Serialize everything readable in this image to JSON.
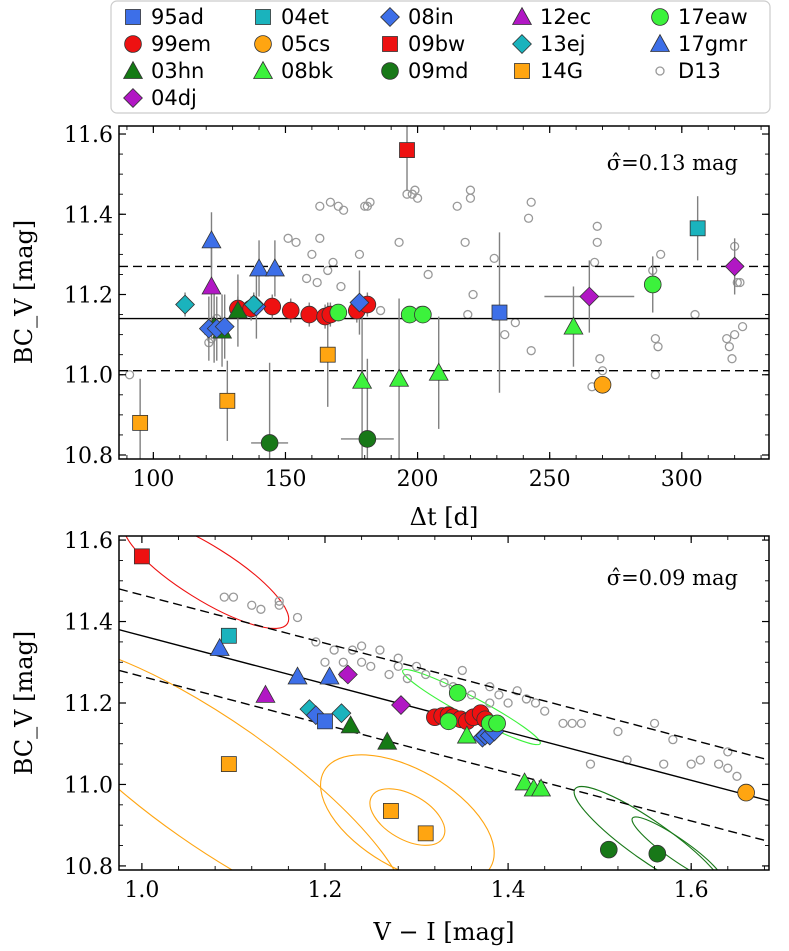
{
  "legend": {
    "items": [
      {
        "label": "95ad",
        "marker": "square",
        "color": "#3d6fe8"
      },
      {
        "label": "99em",
        "marker": "circle",
        "color": "#ee1111"
      },
      {
        "label": "03hn",
        "marker": "triangle",
        "color": "#147a14"
      },
      {
        "label": "04dj",
        "marker": "diamond",
        "color": "#b117c4"
      },
      {
        "label": "04et",
        "marker": "square",
        "color": "#1ab3bd"
      },
      {
        "label": "05cs",
        "marker": "circle",
        "color": "#ffa511"
      },
      {
        "label": "08bk",
        "marker": "triangle",
        "color": "#3cf23c"
      },
      {
        "label": "08in",
        "marker": "diamond",
        "color": "#3d6fe8"
      },
      {
        "label": "09bw",
        "marker": "square",
        "color": "#ee1111"
      },
      {
        "label": "09md",
        "marker": "circle",
        "color": "#187818"
      },
      {
        "label": "12ec",
        "marker": "triangle",
        "color": "#b117c4"
      },
      {
        "label": "13ej",
        "marker": "diamond",
        "color": "#1ab3bd"
      },
      {
        "label": "14G",
        "marker": "square",
        "color": "#ffa511"
      },
      {
        "label": "17eaw",
        "marker": "circle",
        "color": "#3cf23c"
      },
      {
        "label": "17gmr",
        "marker": "triangle",
        "color": "#3d6fe8"
      },
      {
        "label": "D13",
        "marker": "open-circle",
        "color": "#999999"
      }
    ]
  },
  "chart_data": [
    {
      "type": "scatter",
      "title": "",
      "annotation": "σ̂=0.13 mag",
      "xlabel": "Δt [d]",
      "ylabel": "BC_V [mag]",
      "xlim": [
        87,
        333
      ],
      "ylim": [
        10.79,
        11.62
      ],
      "xticks": [
        100,
        150,
        200,
        250,
        300
      ],
      "xtick_labels": [
        "100",
        "150",
        "200",
        "250",
        "300"
      ],
      "yticks": [
        10.8,
        11.0,
        11.2,
        11.4,
        11.6
      ],
      "ytick_labels": [
        "10.8",
        "11.0",
        "11.2",
        "11.4",
        "11.6"
      ],
      "hlines": [
        {
          "y": 11.14,
          "style": "solid"
        },
        {
          "y": 11.27,
          "style": "dashed"
        },
        {
          "y": 11.01,
          "style": "dashed"
        }
      ],
      "background_points": {
        "name": "D13",
        "x": [
          91,
          121,
          122,
          123,
          124,
          126,
          151,
          154,
          158,
          160,
          162,
          163,
          163,
          166,
          167,
          168,
          170,
          171,
          172,
          176,
          178,
          178,
          180,
          181,
          182,
          186,
          193,
          196,
          198,
          199,
          200,
          201,
          204,
          215,
          218,
          219,
          220,
          220,
          221,
          229,
          233,
          237,
          242,
          243,
          243,
          266,
          267,
          268,
          268,
          269,
          270,
          289,
          290,
          290,
          291,
          292,
          305,
          317,
          318,
          319,
          320,
          320,
          321,
          321,
          322,
          323
        ],
        "y": [
          11.0,
          11.08,
          11.09,
          11.13,
          11.14,
          11.12,
          11.34,
          11.33,
          11.24,
          11.3,
          11.23,
          11.34,
          11.42,
          11.26,
          11.43,
          11.28,
          11.42,
          11.22,
          11.41,
          11.15,
          11.16,
          11.3,
          11.42,
          11.42,
          11.43,
          11.16,
          11.33,
          11.45,
          11.45,
          11.46,
          11.44,
          11.16,
          11.25,
          11.42,
          11.33,
          11.15,
          11.46,
          11.44,
          11.2,
          11.29,
          11.1,
          11.13,
          11.39,
          11.43,
          11.06,
          10.97,
          11.28,
          11.37,
          11.33,
          11.04,
          11.01,
          11.26,
          11.09,
          11.0,
          11.07,
          11.3,
          11.15,
          11.09,
          11.07,
          11.04,
          11.1,
          11.32,
          11.27,
          11.23,
          11.23,
          11.12
        ]
      },
      "series": [
        {
          "name": "95ad",
          "x": [
            231
          ],
          "y": [
            11.155
          ],
          "xerr": [
            0
          ],
          "yerr": [
            0.2
          ]
        },
        {
          "name": "99em",
          "x": [
            132,
            137,
            145,
            152,
            159,
            165,
            167,
            177,
            181
          ],
          "y": [
            11.165,
            11.165,
            11.17,
            11.16,
            11.15,
            11.145,
            11.15,
            11.16,
            11.175
          ],
          "xerr": [
            0,
            0,
            0,
            0,
            0,
            0,
            0,
            0,
            0
          ],
          "yerr": [
            0.03,
            0.03,
            0.03,
            0.03,
            0.03,
            0.03,
            0.03,
            0.03,
            0.03
          ]
        },
        {
          "name": "03hn",
          "x": [
            123,
            126,
            132
          ],
          "y": [
            11.12,
            11.11,
            11.16
          ],
          "xerr": [
            0,
            0,
            0
          ],
          "yerr": [
            0.09,
            0.09,
            0.09
          ]
        },
        {
          "name": "04dj",
          "x": [
            265,
            320
          ],
          "y": [
            11.195,
            11.27
          ],
          "xerr": [
            17,
            0
          ],
          "yerr": [
            0.09,
            0.07
          ]
        },
        {
          "name": "04et",
          "x": [
            306
          ],
          "y": [
            11.365
          ],
          "xerr": [
            0
          ],
          "yerr": [
            0.08
          ]
        },
        {
          "name": "05cs",
          "x": [
            270
          ],
          "y": [
            10.975
          ],
          "xerr": [
            0
          ],
          "yerr": [
            0.02
          ]
        },
        {
          "name": "08bk",
          "x": [
            179,
            193,
            208,
            259
          ],
          "y": [
            10.985,
            10.99,
            11.005,
            11.12
          ],
          "xerr": [
            0,
            0,
            0,
            0
          ],
          "yerr": [
            0.2,
            0.2,
            0.14,
            0.1
          ]
        },
        {
          "name": "08in",
          "x": [
            121,
            124,
            127,
            139,
            178
          ],
          "y": [
            11.115,
            11.115,
            11.12,
            11.17,
            11.18
          ],
          "xerr": [
            0,
            0,
            0,
            0,
            0
          ],
          "yerr": [
            0.08,
            0.08,
            0.08,
            0.08,
            0.08
          ]
        },
        {
          "name": "09bw",
          "x": [
            196
          ],
          "y": [
            11.56
          ],
          "xerr": [
            0
          ],
          "yerr": [
            0.1
          ]
        },
        {
          "name": "09md",
          "x": [
            144,
            181
          ],
          "y": [
            10.83,
            10.84
          ],
          "xerr": [
            7,
            10
          ],
          "yerr": [
            0.2,
            0.2
          ]
        },
        {
          "name": "12ec",
          "x": [
            122
          ],
          "y": [
            11.22
          ],
          "xerr": [
            0
          ],
          "yerr": [
            0.13
          ]
        },
        {
          "name": "13ej",
          "x": [
            112,
            138
          ],
          "y": [
            11.175,
            11.175
          ],
          "xerr": [
            0,
            0
          ],
          "yerr": [
            0.03,
            0.03
          ]
        },
        {
          "name": "14G",
          "x": [
            95,
            128,
            166
          ],
          "y": [
            10.88,
            10.935,
            11.05
          ],
          "xerr": [
            0,
            0,
            0
          ],
          "yerr": [
            0.11,
            0.1,
            0.13
          ]
        },
        {
          "name": "17eaw",
          "x": [
            170,
            197,
            202,
            289
          ],
          "y": [
            11.155,
            11.15,
            11.15,
            11.225
          ],
          "xerr": [
            0,
            0,
            0,
            0
          ],
          "yerr": [
            0.01,
            0.01,
            0.01,
            0.07
          ]
        },
        {
          "name": "17gmr",
          "x": [
            122,
            140,
            146
          ],
          "y": [
            11.335,
            11.265,
            11.265
          ],
          "xerr": [
            0,
            0,
            0
          ],
          "yerr": [
            0.07,
            0.07,
            0.07
          ]
        }
      ]
    },
    {
      "type": "scatter",
      "title": "",
      "annotation": "σ̂=0.09 mag",
      "xlabel": "V − I [mag]",
      "ylabel": "BC_V [mag]",
      "xlim": [
        0.975,
        1.685
      ],
      "ylim": [
        10.79,
        11.61
      ],
      "xticks": [
        1.0,
        1.2,
        1.4,
        1.6
      ],
      "xtick_labels": [
        "1.0",
        "1.2",
        "1.4",
        "1.6"
      ],
      "yticks": [
        10.8,
        11.0,
        11.2,
        11.4,
        11.6
      ],
      "ytick_labels": [
        "10.8",
        "11.0",
        "11.2",
        "11.4",
        "11.6"
      ],
      "lines": [
        {
          "x": [
            0.975,
            1.685
          ],
          "y": [
            11.38,
            10.96
          ],
          "style": "solid"
        },
        {
          "x": [
            0.975,
            1.685
          ],
          "y": [
            11.48,
            11.06
          ],
          "style": "dashed"
        },
        {
          "x": [
            0.975,
            1.685
          ],
          "y": [
            11.28,
            10.86
          ],
          "style": "dashed"
        }
      ],
      "ellipses": [
        {
          "series": "09bw",
          "cx": 1.07,
          "cy": 11.52,
          "rx": 0.105,
          "ry": 0.03,
          "angle_deg": 32
        },
        {
          "series": "17eaw",
          "cx": 1.36,
          "cy": 11.19,
          "rx": 0.085,
          "ry": 0.011,
          "angle_deg": 28
        },
        {
          "series": "14G",
          "cx": 1.08,
          "cy": 11.0,
          "rx": 0.25,
          "ry": 0.07,
          "angle_deg": 35
        },
        {
          "series": "14G",
          "cx": 1.29,
          "cy": 10.915,
          "rx": 0.105,
          "ry": 0.055,
          "angle_deg": 30
        },
        {
          "series": "14G",
          "cx": 1.29,
          "cy": 10.92,
          "rx": 0.045,
          "ry": 0.025,
          "angle_deg": 30
        },
        {
          "series": "09md",
          "cx": 1.555,
          "cy": 10.86,
          "rx": 0.1,
          "ry": 0.022,
          "angle_deg": 35
        },
        {
          "series": "09md",
          "cx": 1.585,
          "cy": 10.84,
          "rx": 0.06,
          "ry": 0.012,
          "angle_deg": 35
        }
      ],
      "background_points": {
        "name": "D13",
        "x": [
          1.09,
          1.1,
          1.12,
          1.13,
          1.15,
          1.15,
          1.17,
          1.19,
          1.2,
          1.21,
          1.22,
          1.22,
          1.23,
          1.24,
          1.24,
          1.25,
          1.26,
          1.27,
          1.28,
          1.28,
          1.29,
          1.3,
          1.31,
          1.33,
          1.34,
          1.35,
          1.36,
          1.38,
          1.38,
          1.39,
          1.4,
          1.41,
          1.42,
          1.43,
          1.44,
          1.46,
          1.47,
          1.48,
          1.49,
          1.52,
          1.53,
          1.56,
          1.57,
          1.58,
          1.6,
          1.61,
          1.63,
          1.64,
          1.64,
          1.65
        ],
        "y": [
          11.46,
          11.46,
          11.44,
          11.43,
          11.45,
          11.44,
          11.41,
          11.35,
          11.3,
          11.33,
          11.3,
          11.27,
          11.33,
          11.3,
          11.34,
          11.29,
          11.33,
          11.27,
          11.29,
          11.31,
          11.26,
          11.29,
          11.27,
          11.25,
          11.24,
          11.28,
          11.22,
          11.2,
          11.24,
          11.22,
          11.2,
          11.23,
          11.21,
          11.2,
          11.18,
          11.15,
          11.15,
          11.15,
          11.05,
          11.13,
          11.06,
          11.15,
          11.05,
          11.11,
          11.05,
          11.06,
          11.05,
          11.08,
          11.04,
          11.02
        ]
      },
      "series": [
        {
          "name": "09bw",
          "x": [
            1.0
          ],
          "y": [
            11.56
          ]
        },
        {
          "name": "04et",
          "x": [
            1.095
          ],
          "y": [
            11.365
          ]
        },
        {
          "name": "17gmr",
          "x": [
            1.085,
            1.17,
            1.205
          ],
          "y": [
            11.335,
            11.265,
            11.265
          ]
        },
        {
          "name": "12ec",
          "x": [
            1.135
          ],
          "y": [
            11.22
          ]
        },
        {
          "name": "14G",
          "x": [
            1.095,
            1.272,
            1.31
          ],
          "y": [
            11.05,
            10.935,
            10.88
          ]
        },
        {
          "name": "13ej",
          "x": [
            1.183,
            1.218
          ],
          "y": [
            11.185,
            11.175
          ]
        },
        {
          "name": "08in",
          "x": [
            1.19,
            1.372,
            1.375,
            1.38,
            1.385
          ],
          "y": [
            11.17,
            11.115,
            11.12,
            11.12,
            11.13
          ]
        },
        {
          "name": "95ad",
          "x": [
            1.2
          ],
          "y": [
            11.155
          ]
        },
        {
          "name": "03hn",
          "x": [
            1.228,
            1.268
          ],
          "y": [
            11.145,
            11.105
          ]
        },
        {
          "name": "04dj",
          "x": [
            1.225,
            1.283
          ],
          "y": [
            11.27,
            11.195
          ]
        },
        {
          "name": "99em",
          "x": [
            1.32,
            1.328,
            1.335,
            1.34,
            1.348,
            1.355,
            1.362,
            1.37,
            1.375
          ],
          "y": [
            11.165,
            11.168,
            11.17,
            11.165,
            11.16,
            11.155,
            11.165,
            11.175,
            11.16
          ]
        },
        {
          "name": "17eaw",
          "x": [
            1.335,
            1.345,
            1.38,
            1.388
          ],
          "y": [
            11.155,
            11.225,
            11.15,
            11.15
          ]
        },
        {
          "name": "08bk",
          "x": [
            1.355,
            1.418,
            1.428,
            1.436
          ],
          "y": [
            11.12,
            11.005,
            10.99,
            10.99
          ]
        },
        {
          "name": "09md",
          "x": [
            1.51,
            1.563
          ],
          "y": [
            10.84,
            10.83
          ]
        },
        {
          "name": "05cs",
          "x": [
            1.66
          ],
          "y": [
            10.98
          ]
        }
      ]
    }
  ]
}
